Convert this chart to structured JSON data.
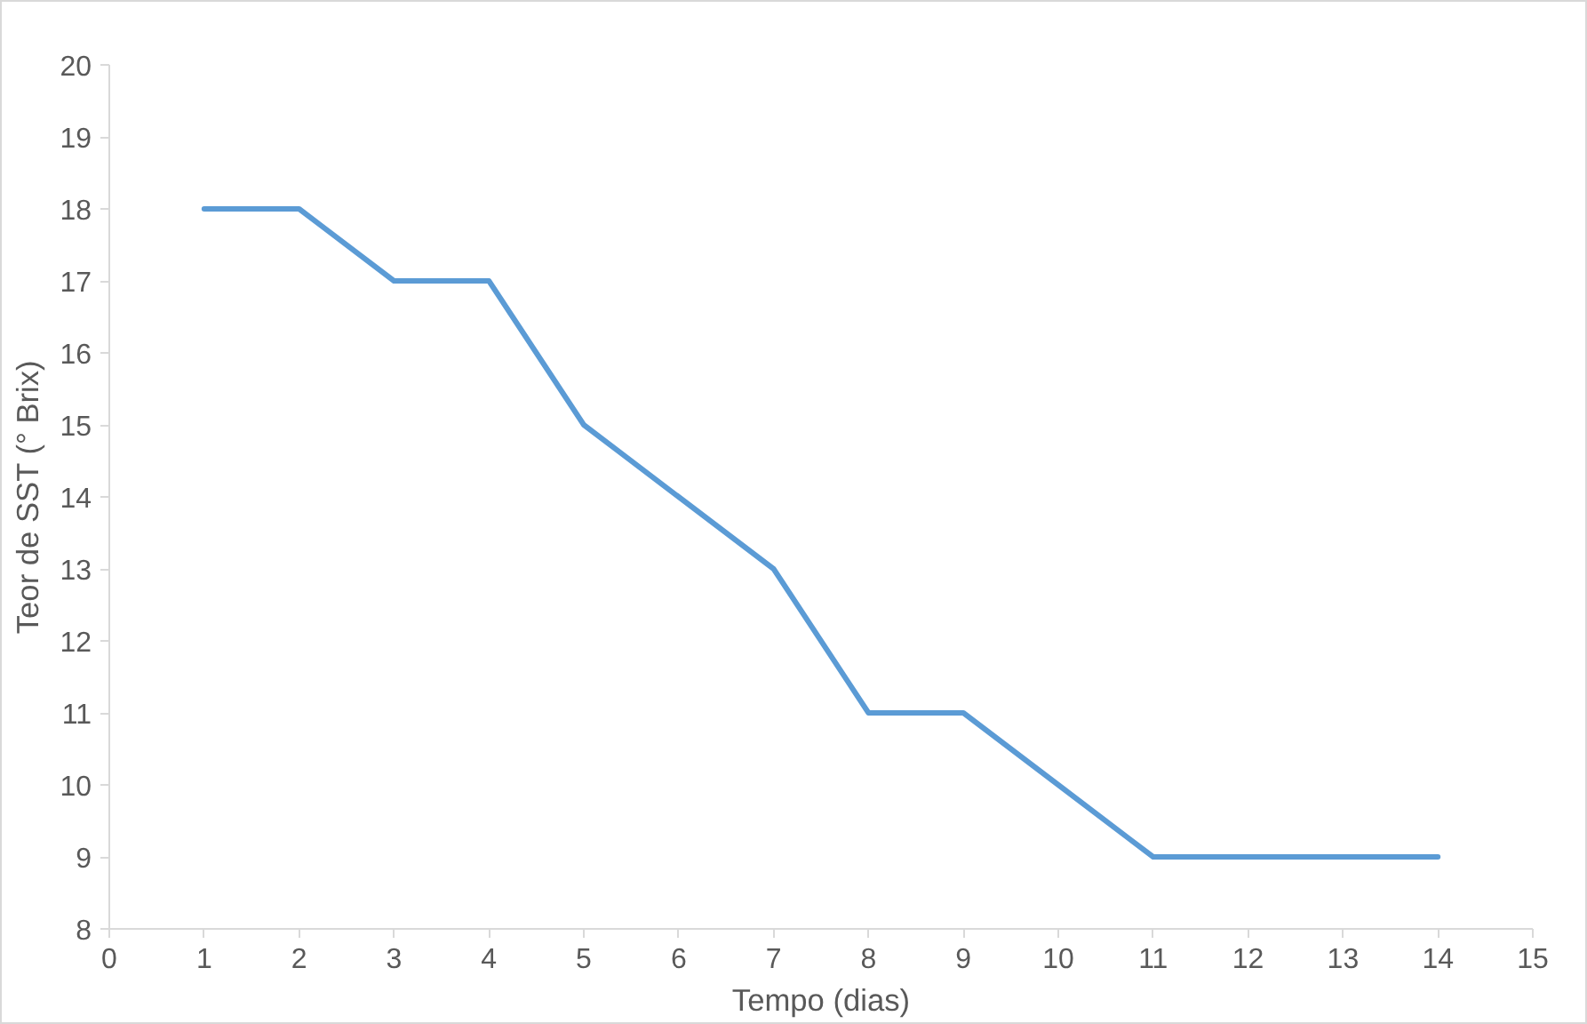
{
  "chart_data": {
    "type": "line",
    "xlabel": "Tempo (dias)",
    "ylabel": "Teor de SST (° Brix)",
    "x": [
      1,
      2,
      3,
      4,
      5,
      6,
      7,
      8,
      9,
      10,
      11,
      12,
      13,
      14
    ],
    "series": [
      {
        "color": "#5b9bd5",
        "values": [
          18,
          18,
          17,
          17,
          15,
          14,
          13,
          11,
          11,
          10,
          9,
          9,
          9,
          9
        ]
      }
    ],
    "xlim": [
      0,
      15
    ],
    "xticks": [
      0,
      1,
      2,
      3,
      4,
      5,
      6,
      7,
      8,
      9,
      10,
      11,
      12,
      13,
      14,
      15
    ],
    "ylim": [
      8,
      20
    ],
    "yticks": [
      8,
      9,
      10,
      11,
      12,
      13,
      14,
      15,
      16,
      17,
      18,
      19,
      20
    ],
    "grid": false,
    "marker": "none",
    "line_style": "solid"
  }
}
